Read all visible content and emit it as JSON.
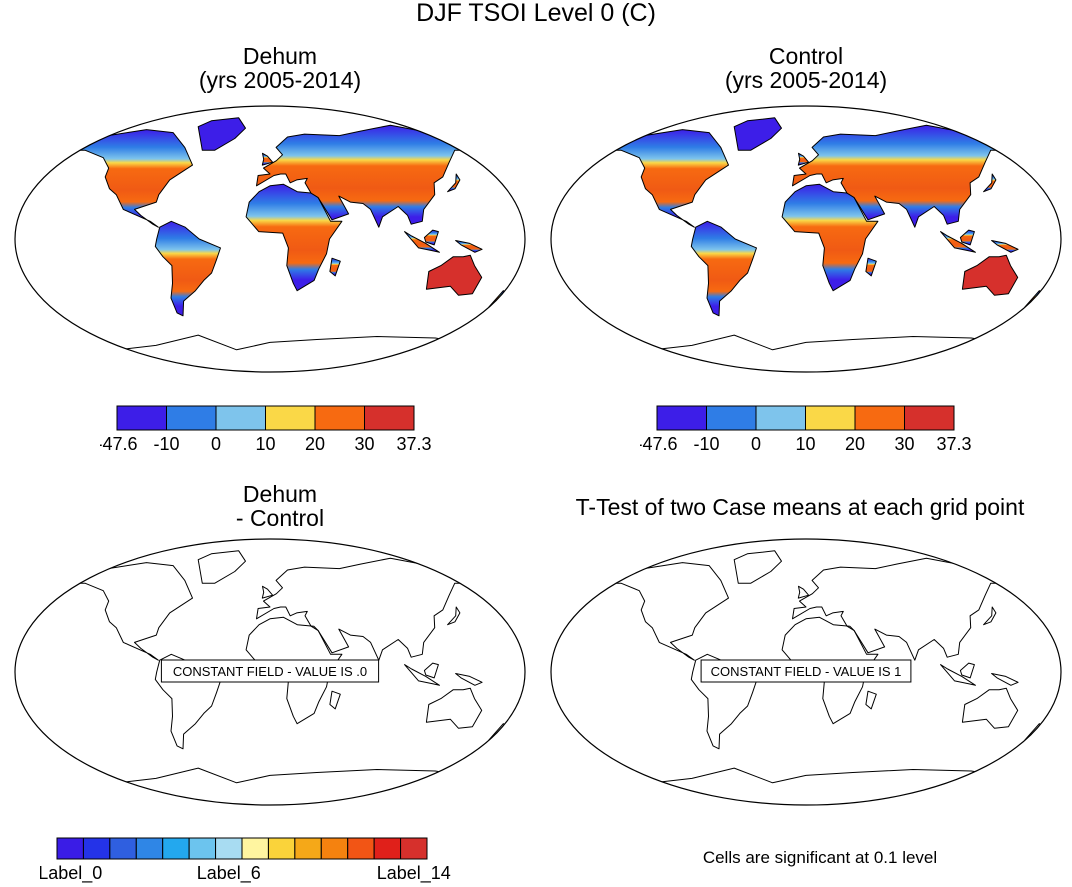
{
  "figure": {
    "title": "DJF TSOI Level 0 (C)"
  },
  "panels": [
    {
      "id": "dehum",
      "title_line1": "Dehum",
      "title_line2": "(yrs 2005-2014)",
      "fill": "temperature"
    },
    {
      "id": "control",
      "title_line1": "Control",
      "title_line2": "(yrs 2005-2014)",
      "fill": "temperature"
    },
    {
      "id": "difference",
      "title_line1": "Dehum",
      "title_line2": "- Control",
      "fill": "none",
      "annotation": "CONSTANT FIELD - VALUE IS .0"
    },
    {
      "id": "ttest",
      "title_line1": "T-Test of two Case means at each grid point",
      "title_line2": "",
      "fill": "none",
      "annotation": "CONSTANT FIELD - VALUE IS 1"
    }
  ],
  "colorbar_top": {
    "labels": [
      "-47.6",
      "-10",
      "0",
      "10",
      "20",
      "30",
      "37.3"
    ],
    "colors": [
      "#3d1ee8",
      "#2f7de6",
      "#7ec4ec",
      "#fad847",
      "#f76a11",
      "#d6302c"
    ]
  },
  "colorbar_bottom": {
    "labels": [
      "Label_0",
      "Label_6",
      "Label_14"
    ],
    "colors": [
      "#3a1ce6",
      "#2433e8",
      "#2f5fe0",
      "#2f86e6",
      "#23a8ee",
      "#6cc4ee",
      "#a8dcf2",
      "#fff5a0",
      "#fad33a",
      "#f5a818",
      "#f5820f",
      "#f25515",
      "#e0201a",
      "#d6302c"
    ]
  },
  "footnote": "Cells are significant at 0.1 level",
  "colors": {
    "land_outline": "#000000",
    "frame": "#000000"
  }
}
